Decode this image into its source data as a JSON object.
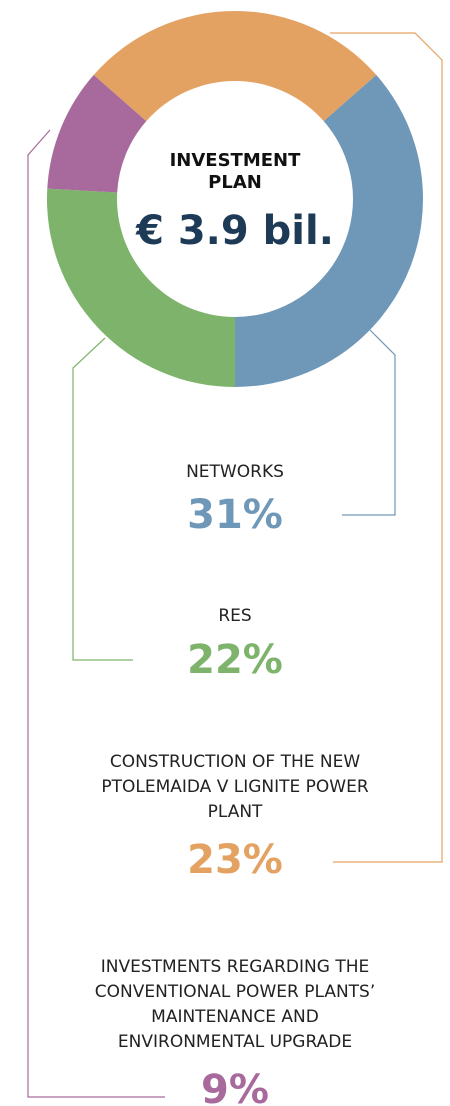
{
  "chart_data": {
    "type": "donut",
    "title": "INVESTMENT PLAN",
    "subtitle": "€ 3.9 bil.",
    "categories": [
      "NETWORKS",
      "RES",
      "INVESTMENTS REGARDING THE CONVENTIONAL POWER PLANTS’ MAINTENANCE AND ENVIRONMENTAL UPGRADE",
      "CONSTRUCTION OF THE NEW PTOLEMAIDA V LIGNITE POWER PLANT"
    ],
    "values": [
      31,
      22,
      9,
      23
    ],
    "value_labels": [
      "31%",
      "22%",
      "9%",
      "23%"
    ],
    "colors": [
      "#6f97b8",
      "#7db36a",
      "#a86a9c",
      "#e4a262"
    ]
  }
}
